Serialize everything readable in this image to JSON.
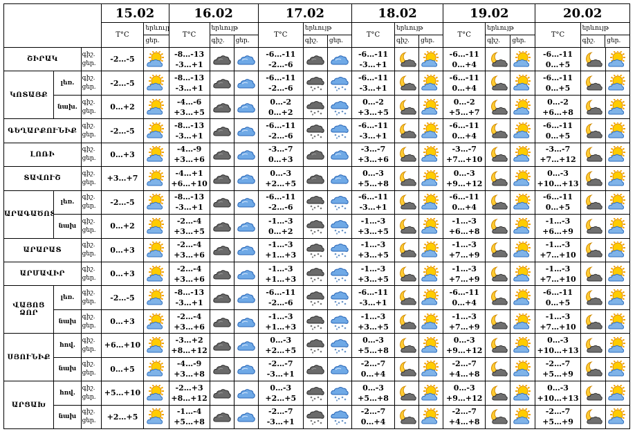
{
  "header": {
    "dates": [
      "15.02",
      "16.02",
      "17.02",
      "18.02",
      "19.02",
      "20.02"
    ],
    "temp_label": "T°C",
    "weather_label": "երևույթ",
    "day_short": "ցեր.",
    "night_short": "գիշ."
  },
  "row_labels": {
    "night": "գիշ.",
    "day": "ցեր."
  },
  "regions": [
    {
      "name": "ՇԻՐԱԿ",
      "subs": [
        {
          "label": "",
          "t15": "-2…-5",
          "i15": "sun-cloud",
          "n16": "-8…-13",
          "d16": "-3…+1",
          "in16": "cloudy-dark",
          "id16": "cloudy-blue",
          "n17": "-6…-11",
          "d17": "-2…-6",
          "in17": "cloudy-dark",
          "id17": "cloudy-blue",
          "n18": "-6…-11",
          "d18": "-3…+1",
          "in18": "moon-cloud",
          "id18": "sun-cloud",
          "n19": "-6…-11",
          "d19": "0…+4",
          "in19": "moon-cloud",
          "id19": "sun-cloud",
          "n20": "-6…-11",
          "d20": "0…+5",
          "in20": "moon-cloud",
          "id20": "sun-cloud"
        }
      ]
    },
    {
      "name": "ԿՈՏԱՅՔ",
      "subs": [
        {
          "label": "լեռ.",
          "t15": "-2…-5",
          "i15": "sun-cloud",
          "n16": "-8…-13",
          "d16": "-3…+1",
          "in16": "cloudy-dark",
          "id16": "cloudy-blue",
          "n17": "-6…-11",
          "d17": "-2…-6",
          "in17": "snow-dark",
          "id17": "snow-blue",
          "n18": "-6…-11",
          "d18": "-3…+1",
          "in18": "moon-cloud",
          "id18": "sun-cloud",
          "n19": "-6…-11",
          "d19": "0…+4",
          "in19": "moon-cloud",
          "id19": "sun-cloud",
          "n20": "-6…-11",
          "d20": "0…+5",
          "in20": "moon-cloud",
          "id20": "sun-cloud"
        },
        {
          "label": "նախ.",
          "t15": "0…+2",
          "i15": "sun-cloud",
          "n16": "-4…-6",
          "d16": "+3…+5",
          "in16": "cloudy-dark",
          "id16": "cloudy-blue",
          "n17": "0…-2",
          "d17": "0…+2",
          "in17": "snow-dark",
          "id17": "snow-blue",
          "n18": "0…-2",
          "d18": "+3…+5",
          "in18": "moon-cloud",
          "id18": "sun-cloud",
          "n19": "0…-2",
          "d19": "+5…+7",
          "in19": "moon-cloud",
          "id19": "sun-cloud",
          "n20": "0…-2",
          "d20": "+6…+8",
          "in20": "moon-cloud",
          "id20": "sun-cloud"
        }
      ]
    },
    {
      "name": "ԳԵՂԱՐՔՈՒՆԻՔ",
      "subs": [
        {
          "label": "",
          "t15": "-2…-5",
          "i15": "sun-cloud",
          "n16": "-8…-13",
          "d16": "-3…+1",
          "in16": "cloudy-dark",
          "id16": "cloudy-blue",
          "n17": "-6…-11",
          "d17": "-2…-6",
          "in17": "snow-dark",
          "id17": "snow-blue",
          "n18": "-6…-11",
          "d18": "-3…+1",
          "in18": "moon-cloud",
          "id18": "sun-cloud",
          "n19": "-6…-11",
          "d19": "0…+4",
          "in19": "moon-cloud",
          "id19": "sun-cloud",
          "n20": "-6…-11",
          "d20": "0…+5",
          "in20": "moon-cloud",
          "id20": "sun-cloud"
        }
      ]
    },
    {
      "name": "ԼՈՌԻ",
      "subs": [
        {
          "label": "",
          "t15": "0…+3",
          "i15": "sun-cloud",
          "n16": "-4…-9",
          "d16": "+3…+6",
          "in16": "cloudy-dark",
          "id16": "cloudy-blue",
          "n17": "-3…-7",
          "d17": "0…+3",
          "in17": "cloudy-dark",
          "id17": "cloudy-blue",
          "n18": "-3…-7",
          "d18": "+3…+6",
          "in18": "moon-cloud",
          "id18": "sun-cloud",
          "n19": "-3…-7",
          "d19": "+7…+10",
          "in19": "moon-cloud",
          "id19": "sun-cloud",
          "n20": "-3…-7",
          "d20": "+7…+12",
          "in20": "moon-cloud",
          "id20": "sun-cloud"
        }
      ]
    },
    {
      "name": "ՏԱՎՈՒՇ",
      "subs": [
        {
          "label": "",
          "t15": "+3…+7",
          "i15": "sun-cloud",
          "n16": "-4…+1",
          "d16": "+6…+10",
          "in16": "cloudy-dark",
          "id16": "cloudy-blue",
          "n17": "0…-3",
          "d17": "+2…+5",
          "in17": "cloudy-dark",
          "id17": "cloudy-blue",
          "n18": "0…-3",
          "d18": "+5…+8",
          "in18": "moon-cloud",
          "id18": "sun-cloud",
          "n19": "0…-3",
          "d19": "+9…+12",
          "in19": "moon-cloud",
          "id19": "sun-cloud",
          "n20": "0…-3",
          "d20": "+10…+13",
          "in20": "moon-cloud",
          "id20": "sun-cloud"
        }
      ]
    },
    {
      "name": "ԱՐԱԳԱԾՈՏՆ",
      "subs": [
        {
          "label": "լեռ.",
          "t15": "-2…-5",
          "i15": "sun-cloud",
          "n16": "-8…-13",
          "d16": "-3…+1",
          "in16": "cloudy-dark",
          "id16": "cloudy-blue",
          "n17": "-6…-11",
          "d17": "-2…-6",
          "in17": "snow-dark",
          "id17": "snow-blue",
          "n18": "-6…-11",
          "d18": "-3…+1",
          "in18": "moon-cloud",
          "id18": "sun-cloud",
          "n19": "-6…-11",
          "d19": "0…+4",
          "in19": "moon-cloud",
          "id19": "sun-cloud",
          "n20": "-6…-11",
          "d20": "0…+5",
          "in20": "moon-cloud",
          "id20": "sun-cloud"
        },
        {
          "label": "նախ",
          "t15": "0…+2",
          "i15": "sun-cloud",
          "n16": "-2…-4",
          "d16": "+3…+5",
          "in16": "cloudy-dark",
          "id16": "cloudy-blue",
          "n17": "-1…-3",
          "d17": "0…+2",
          "in17": "snow-dark",
          "id17": "snow-blue",
          "n18": "-1…-3",
          "d18": "+3…+5",
          "in18": "moon-cloud",
          "id18": "sun-cloud",
          "n19": "-1…-3",
          "d19": "+6…+8",
          "in19": "moon-cloud",
          "id19": "sun-cloud",
          "n20": "-1…-3",
          "d20": "+6…+9",
          "in20": "moon-cloud",
          "id20": "sun-cloud"
        }
      ]
    },
    {
      "name": "ԱՐԱՐԱՏ",
      "subs": [
        {
          "label": "",
          "t15": "0…+3",
          "i15": "sun-cloud",
          "n16": "-2…-4",
          "d16": "+3…+6",
          "in16": "cloudy-dark",
          "id16": "cloudy-blue",
          "n17": "-1…-3",
          "d17": "+1…+3",
          "in17": "snow-dark",
          "id17": "snow-blue",
          "n18": "-1…-3",
          "d18": "+3…+5",
          "in18": "moon-cloud",
          "id18": "sun-cloud",
          "n19": "-1…-3",
          "d19": "+7…+9",
          "in19": "moon-cloud",
          "id19": "sun-cloud",
          "n20": "-1…-3",
          "d20": "+7…+10",
          "in20": "moon-cloud",
          "id20": "sun-cloud"
        }
      ]
    },
    {
      "name": "ԱՐՄԱՎԻՐ",
      "subs": [
        {
          "label": "",
          "t15": "0…+3",
          "i15": "sun-cloud",
          "n16": "-2…-4",
          "d16": "+3…+6",
          "in16": "cloudy-dark",
          "id16": "cloudy-blue",
          "n17": "-1…-3",
          "d17": "+1…+3",
          "in17": "snow-dark",
          "id17": "snow-blue",
          "n18": "-1…-3",
          "d18": "+3…+5",
          "in18": "moon-cloud",
          "id18": "sun-cloud",
          "n19": "-1…-3",
          "d19": "+7…+9",
          "in19": "moon-cloud",
          "id19": "sun-cloud",
          "n20": "-1…-3",
          "d20": "+7…+10",
          "in20": "moon-cloud",
          "id20": "sun-cloud"
        }
      ]
    },
    {
      "name": "ՎԱՅՈՑ ՁՈՐ",
      "subs": [
        {
          "label": "լեռ.",
          "t15": "-2…-5",
          "i15": "sun-cloud",
          "n16": "-8…-13",
          "d16": "-3…+1",
          "in16": "cloudy-dark",
          "id16": "cloudy-blue",
          "n17": "-6…-11",
          "d17": "-2…-6",
          "in17": "snow-dark",
          "id17": "snow-blue",
          "n18": "-6…-11",
          "d18": "-3…+1",
          "in18": "moon-cloud",
          "id18": "sun-cloud",
          "n19": "-6…-11",
          "d19": "0…+4",
          "in19": "moon-cloud",
          "id19": "sun-cloud",
          "n20": "-6…-11",
          "d20": "0…+5",
          "in20": "moon-cloud",
          "id20": "sun-cloud"
        },
        {
          "label": "նախ",
          "t15": "0…+3",
          "i15": "sun-cloud",
          "n16": "-2…-4",
          "d16": "+3…+6",
          "in16": "cloudy-dark",
          "id16": "cloudy-blue",
          "n17": "-1…-3",
          "d17": "+1…+3",
          "in17": "snow-dark",
          "id17": "snow-blue",
          "n18": "-1…-3",
          "d18": "+3…+5",
          "in18": "moon-cloud",
          "id18": "sun-cloud",
          "n19": "-1…-3",
          "d19": "+7…+9",
          "in19": "moon-cloud",
          "id19": "sun-cloud",
          "n20": "-1…-3",
          "d20": "+7…+10",
          "in20": "moon-cloud",
          "id20": "sun-cloud"
        }
      ]
    },
    {
      "name": "ՍՅՈՒՆԻՔ",
      "subs": [
        {
          "label": "հով.",
          "t15": "+6…+10",
          "i15": "sun-cloud",
          "n16": "-3…+2",
          "d16": "+8…+12",
          "in16": "cloudy-dark",
          "id16": "cloudy-blue",
          "n17": "0…-3",
          "d17": "+2…+5",
          "in17": "snow-dark",
          "id17": "snow-blue",
          "n18": "0…-3",
          "d18": "+5…+8",
          "in18": "moon-cloud",
          "id18": "sun-cloud",
          "n19": "0…-3",
          "d19": "+9…+12",
          "in19": "moon-cloud",
          "id19": "sun-cloud",
          "n20": "0…-3",
          "d20": "+10…+13",
          "in20": "moon-cloud",
          "id20": "sun-cloud"
        },
        {
          "label": "նախ",
          "t15": "0…+5",
          "i15": "sun-cloud",
          "n16": "-4…-9",
          "d16": "+3…+8",
          "in16": "cloudy-dark",
          "id16": "cloudy-blue",
          "n17": "-2…-7",
          "d17": "-3…+1",
          "in17": "cloudy-dark",
          "id17": "cloudy-blue",
          "n18": "-2…-7",
          "d18": "0…+4",
          "in18": "moon-cloud",
          "id18": "sun-cloud",
          "n19": "-2…-7",
          "d19": "+4…+8",
          "in19": "moon-cloud",
          "id19": "sun-cloud",
          "n20": "-2…-7",
          "d20": "+5…+9",
          "in20": "moon-cloud",
          "id20": "sun-cloud"
        }
      ]
    },
    {
      "name": "ԱՐՑԱԽ",
      "subs": [
        {
          "label": "հով.",
          "t15": "+5…+10",
          "i15": "sun-cloud",
          "n16": "-2…+3",
          "d16": "+8…+12",
          "in16": "cloudy-dark",
          "id16": "cloudy-blue",
          "n17": "0…-3",
          "d17": "+2…+5",
          "in17": "snow-dark",
          "id17": "snow-blue",
          "n18": "0…-3",
          "d18": "+5…+8",
          "in18": "moon-cloud",
          "id18": "sun-cloud",
          "n19": "0…-3",
          "d19": "+9…+12",
          "in19": "moon-cloud",
          "id19": "sun-cloud",
          "n20": "0…-3",
          "d20": "+10…+13",
          "in20": "moon-cloud",
          "id20": "sun-cloud"
        },
        {
          "label": "նախ",
          "t15": "+2…+5",
          "i15": "sun-cloud",
          "n16": "-1…-4",
          "d16": "+5…+8",
          "in16": "cloudy-dark",
          "id16": "cloudy-blue",
          "n17": "-2…-7",
          "d17": "-3…+1",
          "in17": "snow-dark",
          "id17": "snow-blue",
          "n18": "-2…-7",
          "d18": "0…+4",
          "in18": "moon-cloud",
          "id18": "sun-cloud",
          "n19": "-2…-7",
          "d19": "+4…+8",
          "in19": "moon-cloud",
          "id19": "sun-cloud",
          "n20": "-2…-7",
          "d20": "+5…+9",
          "in20": "moon-cloud",
          "id20": "sun-cloud"
        }
      ]
    }
  ]
}
